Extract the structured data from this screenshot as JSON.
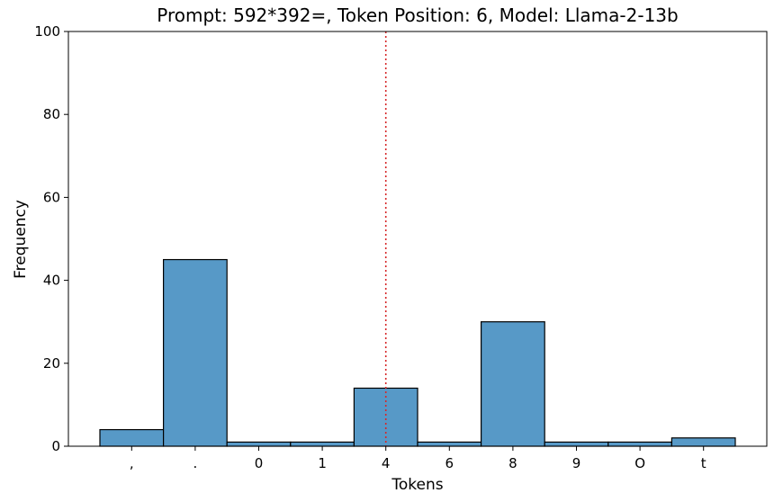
{
  "chart_data": {
    "type": "bar",
    "title": "Prompt: 592*392=, Token Position: 6, Model: Llama-2-13b",
    "xlabel": "Tokens",
    "ylabel": "Frequency",
    "categories": [
      ",",
      ".",
      "0",
      "1",
      "4",
      "6",
      "8",
      "9",
      "O",
      "t"
    ],
    "values": [
      4,
      45,
      1,
      1,
      14,
      1,
      30,
      1,
      1,
      2
    ],
    "ylim": [
      0,
      100
    ],
    "yticks": [
      0,
      20,
      40,
      60,
      80,
      100
    ],
    "reference_line": {
      "category": "4",
      "color": "#d62728",
      "style": "dotted"
    },
    "bar_color": "#5799c7",
    "grid": false
  }
}
